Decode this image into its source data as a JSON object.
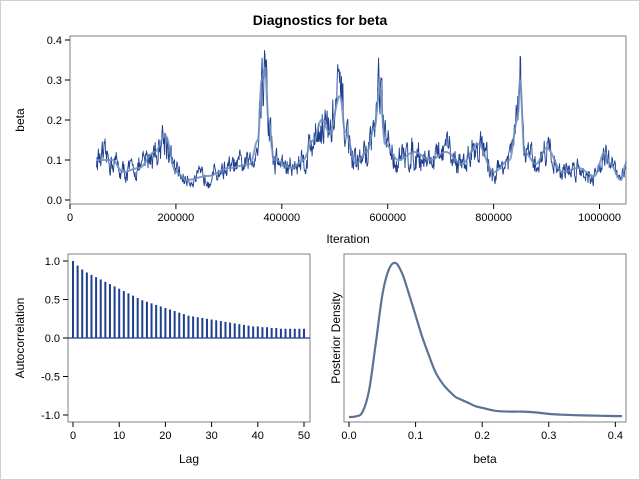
{
  "title": "Diagnostics for beta",
  "colors": {
    "trace": "#1f3f8f",
    "smooth": "#6e8fbf",
    "autocorr": "#1f3f8f",
    "density": "#5a7394",
    "frame": "#7f7f7f"
  },
  "chart_data": [
    {
      "type": "line",
      "panel": "trace",
      "xlabel": "Iteration",
      "ylabel": "beta",
      "xlim": [
        0,
        1050000
      ],
      "ylim": [
        0,
        0.4
      ],
      "xticks": [
        0,
        200000,
        400000,
        600000,
        800000,
        1000000
      ],
      "yticks": [
        0.0,
        0.1,
        0.2,
        0.3,
        0.4
      ],
      "xticklabels": [
        "0",
        "200000",
        "400000",
        "600000",
        "800000",
        "1000000"
      ],
      "yticklabels": [
        "0.0",
        "0.1",
        "0.2",
        "0.3",
        "0.4"
      ],
      "x_range": [
        50000,
        1050000
      ],
      "anchors": [
        [
          50000,
          0.1
        ],
        [
          80000,
          0.1
        ],
        [
          100000,
          0.07
        ],
        [
          130000,
          0.08
        ],
        [
          160000,
          0.12
        ],
        [
          180000,
          0.16
        ],
        [
          200000,
          0.07
        ],
        [
          220000,
          0.05
        ],
        [
          260000,
          0.06
        ],
        [
          300000,
          0.08
        ],
        [
          340000,
          0.09
        ],
        [
          355000,
          0.15
        ],
        [
          362000,
          0.3
        ],
        [
          368000,
          0.33
        ],
        [
          375000,
          0.2
        ],
        [
          385000,
          0.1
        ],
        [
          420000,
          0.08
        ],
        [
          440000,
          0.1
        ],
        [
          460000,
          0.15
        ],
        [
          475000,
          0.2
        ],
        [
          490000,
          0.17
        ],
        [
          510000,
          0.26
        ],
        [
          520000,
          0.17
        ],
        [
          540000,
          0.09
        ],
        [
          560000,
          0.12
        ],
        [
          575000,
          0.18
        ],
        [
          585000,
          0.28
        ],
        [
          595000,
          0.14
        ],
        [
          620000,
          0.1
        ],
        [
          650000,
          0.12
        ],
        [
          680000,
          0.1
        ],
        [
          710000,
          0.12
        ],
        [
          740000,
          0.09
        ],
        [
          770000,
          0.14
        ],
        [
          800000,
          0.07
        ],
        [
          830000,
          0.1
        ],
        [
          845000,
          0.2
        ],
        [
          850000,
          0.3
        ],
        [
          858000,
          0.12
        ],
        [
          880000,
          0.09
        ],
        [
          900000,
          0.13
        ],
        [
          930000,
          0.07
        ],
        [
          960000,
          0.08
        ],
        [
          990000,
          0.06
        ],
        [
          1010000,
          0.12
        ],
        [
          1020000,
          0.09
        ],
        [
          1040000,
          0.05
        ],
        [
          1050000,
          0.09
        ]
      ]
    },
    {
      "type": "bar",
      "panel": "autocorrelation",
      "xlabel": "Lag",
      "ylabel": "Autocorrelation",
      "xlim": [
        0,
        50
      ],
      "ylim": [
        -1.0,
        1.0
      ],
      "xticks": [
        0,
        10,
        20,
        30,
        40,
        50
      ],
      "yticks": [
        -1.0,
        -0.5,
        0.0,
        0.5,
        1.0
      ],
      "xticklabels": [
        "0",
        "10",
        "20",
        "30",
        "40",
        "50"
      ],
      "yticklabels": [
        "-1.0",
        "-0.5",
        "0.0",
        "0.5",
        "1.0"
      ],
      "lags": [
        0,
        1,
        2,
        3,
        4,
        5,
        6,
        7,
        8,
        9,
        10,
        11,
        12,
        13,
        14,
        15,
        16,
        17,
        18,
        19,
        20,
        21,
        22,
        23,
        24,
        25,
        26,
        27,
        28,
        29,
        30,
        31,
        32,
        33,
        34,
        35,
        36,
        37,
        38,
        39,
        40,
        41,
        42,
        43,
        44,
        45,
        46,
        47,
        48,
        49,
        50
      ],
      "values": [
        1.0,
        0.94,
        0.89,
        0.85,
        0.82,
        0.79,
        0.76,
        0.73,
        0.7,
        0.67,
        0.64,
        0.61,
        0.58,
        0.55,
        0.52,
        0.49,
        0.47,
        0.45,
        0.43,
        0.41,
        0.39,
        0.37,
        0.35,
        0.33,
        0.31,
        0.29,
        0.28,
        0.27,
        0.26,
        0.25,
        0.24,
        0.23,
        0.22,
        0.21,
        0.2,
        0.19,
        0.18,
        0.17,
        0.16,
        0.15,
        0.15,
        0.14,
        0.14,
        0.13,
        0.13,
        0.12,
        0.12,
        0.12,
        0.12,
        0.12,
        0.12
      ]
    },
    {
      "type": "line",
      "panel": "density",
      "xlabel": "beta",
      "ylabel": "Posterior Density",
      "xlim": [
        0,
        0.41
      ],
      "xticks": [
        0.0,
        0.1,
        0.2,
        0.3,
        0.4
      ],
      "xticklabels": [
        "0.0",
        "0.1",
        "0.2",
        "0.3",
        "0.4"
      ],
      "x": [
        0.0,
        0.01,
        0.02,
        0.03,
        0.04,
        0.05,
        0.06,
        0.07,
        0.08,
        0.09,
        0.1,
        0.11,
        0.12,
        0.13,
        0.14,
        0.15,
        0.16,
        0.17,
        0.18,
        0.19,
        0.2,
        0.22,
        0.24,
        0.26,
        0.28,
        0.3,
        0.32,
        0.34,
        0.36,
        0.38,
        0.4,
        0.41
      ],
      "y": [
        0.0,
        0.004,
        0.03,
        0.17,
        0.47,
        0.79,
        0.96,
        1.0,
        0.93,
        0.8,
        0.66,
        0.52,
        0.4,
        0.29,
        0.22,
        0.17,
        0.13,
        0.11,
        0.09,
        0.07,
        0.06,
        0.04,
        0.035,
        0.035,
        0.03,
        0.02,
        0.015,
        0.012,
        0.01,
        0.008,
        0.006,
        0.006
      ]
    }
  ]
}
